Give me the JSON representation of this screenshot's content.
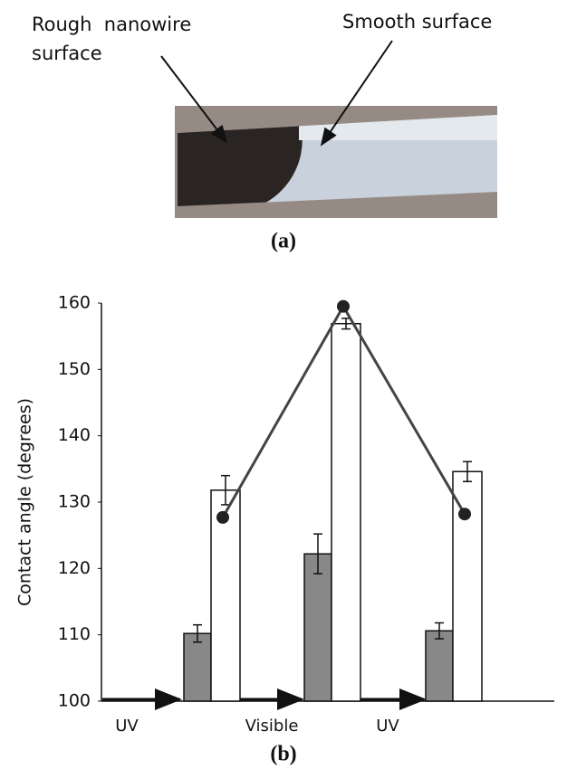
{
  "panel_a": {
    "labels": [
      "Rough  nanowire",
      "surface",
      "Smooth surface"
    ],
    "caption": "(a)"
  },
  "chart_data": {
    "type": "bar",
    "caption": "(b)",
    "ylabel": "Contact angle (degrees)",
    "categories": [
      null,
      null,
      null
    ],
    "ylim": [
      100,
      160
    ],
    "yticks": [
      100,
      110,
      120,
      130,
      140,
      150,
      160
    ],
    "series": [
      {
        "color": "#888888",
        "values": [
          110.2,
          122.2,
          110.6
        ],
        "errors": [
          1.3,
          3.0,
          1.2
        ]
      },
      {
        "color": "#ffffff",
        "values": [
          131.8,
          156.9,
          134.6
        ],
        "errors": [
          2.2,
          0.8,
          1.5
        ]
      },
      {
        "type": "line",
        "color": "#444444",
        "values": [
          127.7,
          159.5,
          128.2
        ]
      }
    ],
    "annotations": [
      "UV",
      "Visible",
      "UV"
    ]
  }
}
